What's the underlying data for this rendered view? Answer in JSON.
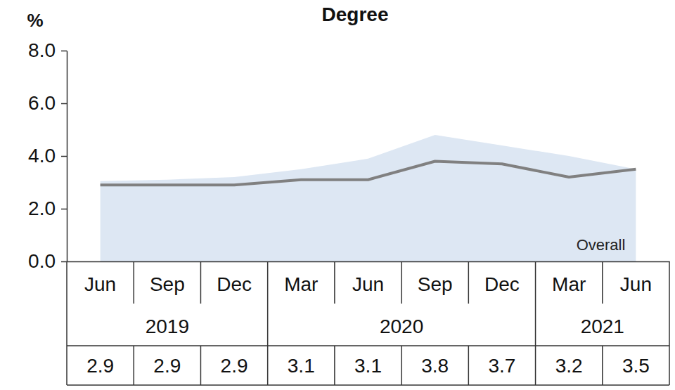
{
  "chart_data": {
    "type": "line",
    "title": "Degree",
    "y_label": "%",
    "categories": [
      "Jun",
      "Sep",
      "Dec",
      "Mar",
      "Jun",
      "Sep",
      "Dec",
      "Mar",
      "Jun"
    ],
    "years": [
      "2019",
      "2019",
      "2019",
      "2020",
      "2020",
      "2020",
      "2020",
      "2021",
      "2021"
    ],
    "series": [
      {
        "name": "Overall",
        "type": "line",
        "color": "#808080",
        "values": [
          2.9,
          2.9,
          2.9,
          3.1,
          3.1,
          3.8,
          3.7,
          3.2,
          3.5
        ]
      },
      {
        "type": "area",
        "color": "#dde7f3",
        "values": [
          3.05,
          3.1,
          3.2,
          3.5,
          3.9,
          4.8,
          4.4,
          4.0,
          3.5
        ]
      }
    ],
    "ylim": [
      0,
      8
    ],
    "yticks": [
      {
        "value": 0,
        "label": "0.0"
      },
      {
        "value": 2,
        "label": "2.0"
      },
      {
        "value": 4,
        "label": "4.0"
      },
      {
        "value": 6,
        "label": "6.0"
      },
      {
        "value": 8,
        "label": "8.0"
      }
    ],
    "grid": false,
    "data_labels": true
  }
}
